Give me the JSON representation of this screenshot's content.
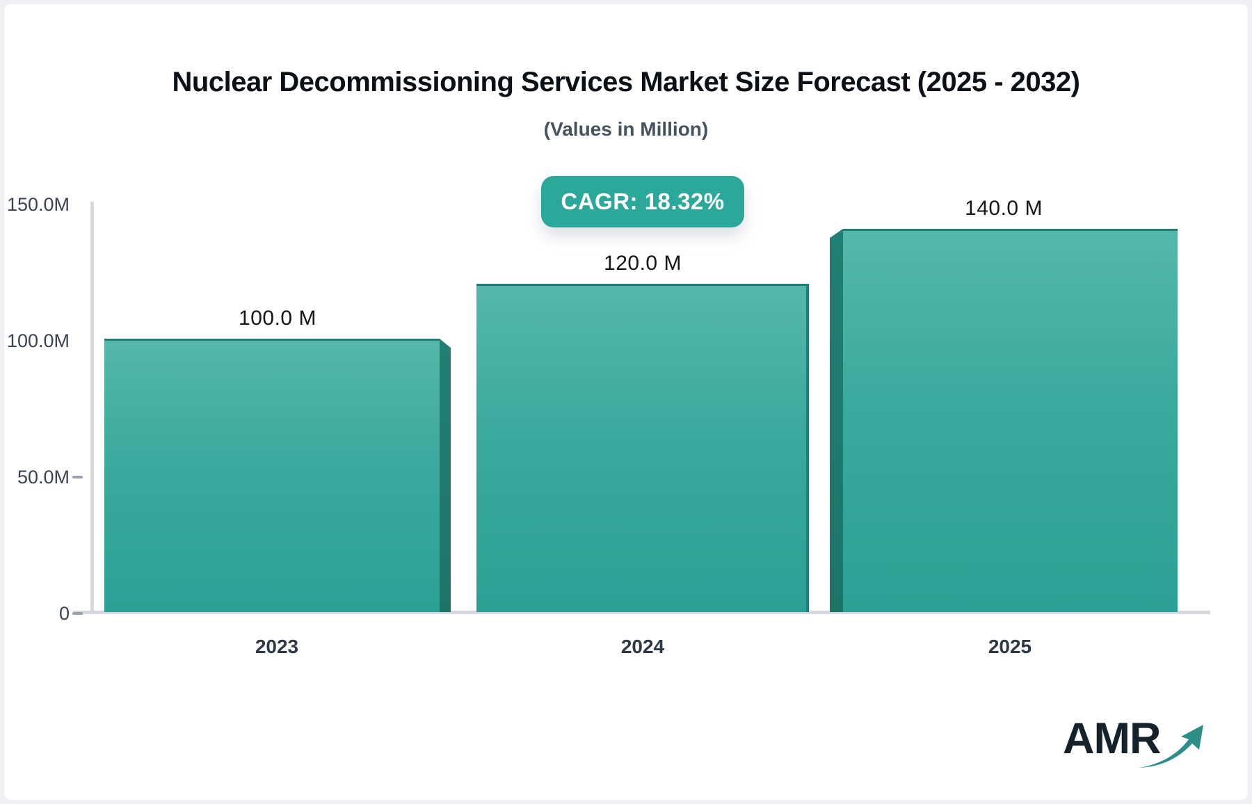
{
  "header": {
    "title": "Nuclear Decommissioning Services Market Size Forecast (2025 - 2032)",
    "subtitle": "(Values in Million)"
  },
  "badge": {
    "label": "CAGR: 18.32%",
    "background": "#2ca89a"
  },
  "chart_data": {
    "type": "bar",
    "title": "Nuclear Decommissioning Services Market Size Forecast (2025 - 2032)",
    "subtitle": "(Values in Million)",
    "categories": [
      "2023",
      "2024",
      "2025"
    ],
    "values": [
      100.0,
      120.0,
      140.0
    ],
    "unit": "Million",
    "bar_labels": [
      "100.0 M",
      "120.0 M",
      "140.0 M"
    ],
    "y_ticks": [
      "150.0M",
      "100.0M",
      "50.0M",
      "0"
    ],
    "ylim": [
      0,
      150
    ],
    "grid": false,
    "legend": false,
    "annotation": "CAGR: 18.32%",
    "bar_color_top": "#55b7a9",
    "bar_color_bottom": "#2ba195",
    "bar_side_color": "#1f7468",
    "axis_color": "#d6d9de"
  },
  "logo": {
    "text": "AMR",
    "arrow_color": "#2d8d87"
  }
}
